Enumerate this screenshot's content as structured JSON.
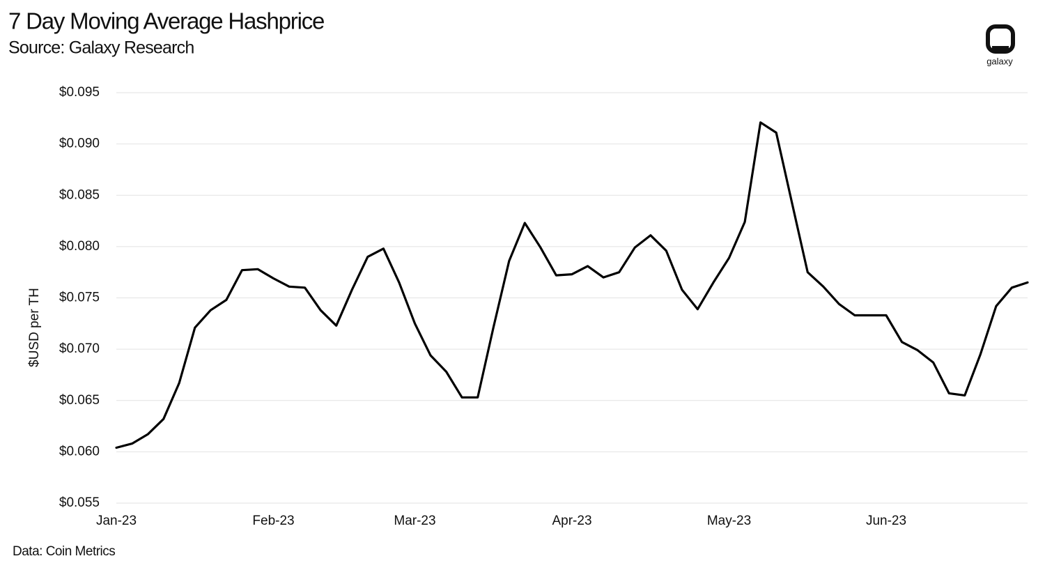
{
  "chart_data": {
    "type": "line",
    "title": "7 Day Moving Average Hashprice",
    "subtitle": "Source: Galaxy Research",
    "y_label": "$USD per TH",
    "note": "Data: Coin Metrics",
    "logo": "galaxy",
    "grid": true,
    "categories": [
      "Jan-23",
      null,
      null,
      null,
      null,
      null,
      null,
      null,
      null,
      null,
      "Feb-23",
      null,
      null,
      null,
      null,
      null,
      null,
      null,
      null,
      "Mar-23",
      null,
      null,
      null,
      null,
      null,
      null,
      null,
      null,
      null,
      "Apr-23",
      null,
      null,
      null,
      null,
      null,
      null,
      null,
      null,
      null,
      "May-23",
      null,
      null,
      null,
      null,
      null,
      null,
      null,
      null,
      null,
      "Jun-23",
      null,
      null,
      null,
      null,
      null,
      null,
      null,
      null,
      null
    ],
    "series": [
      {
        "name": "7 Day Moving Average Hashprice",
        "color": "#000000",
        "values": [
          0.0604,
          0.0608,
          0.0617,
          0.0632,
          0.0667,
          0.0721,
          0.0738,
          0.0748,
          0.0777,
          0.0778,
          0.0769,
          0.0761,
          0.076,
          0.0738,
          0.0723,
          0.0758,
          0.079,
          0.0798,
          0.0765,
          0.0725,
          0.0694,
          0.0678,
          0.0653,
          0.0653,
          0.0721,
          0.0786,
          0.0823,
          0.0799,
          0.0772,
          0.0773,
          0.0781,
          0.077,
          0.0775,
          0.0799,
          0.0811,
          0.0796,
          0.0758,
          0.0739,
          0.0765,
          0.0789,
          0.0824,
          0.0921,
          0.0911,
          0.0843,
          0.0775,
          0.0761,
          0.0744,
          0.0733,
          0.0733,
          0.0733,
          0.0707,
          0.0699,
          0.0687,
          0.0657,
          0.0655,
          0.0695,
          0.0742,
          0.076,
          0.0765
        ]
      }
    ],
    "ylim": [
      0.055,
      0.095
    ],
    "yticks": [
      {
        "value": 0.055,
        "label": "$0.055"
      },
      {
        "value": 0.06,
        "label": "$0.060"
      },
      {
        "value": 0.065,
        "label": "$0.065"
      },
      {
        "value": 0.07,
        "label": "$0.070"
      },
      {
        "value": 0.075,
        "label": "$0.075"
      },
      {
        "value": 0.08,
        "label": "$0.080"
      },
      {
        "value": 0.085,
        "label": "$0.085"
      },
      {
        "value": 0.09,
        "label": "$0.090"
      },
      {
        "value": 0.095,
        "label": "$0.095"
      }
    ]
  }
}
